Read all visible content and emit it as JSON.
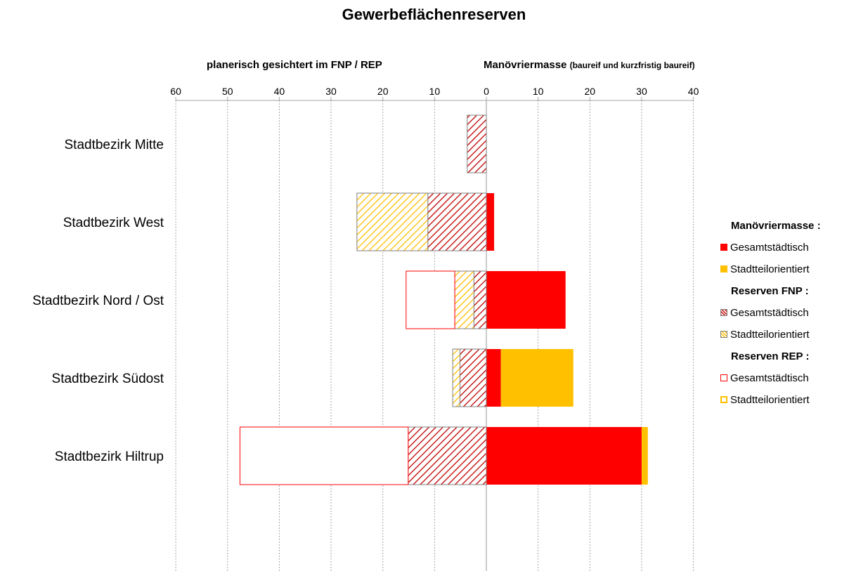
{
  "chart_data": {
    "type": "bar",
    "orientation": "horizontal",
    "title": "Gewerbeflächenreserven",
    "left_subtitle": "planerisch gesichtert im FNP / REP",
    "right_subtitle": "Manövriermasse",
    "right_subtitle_note": "(baureif und kurzfristig baureif)",
    "xlim": [
      -60,
      40
    ],
    "x_ticks": [
      -60,
      -50,
      -40,
      -30,
      -20,
      -10,
      0,
      10,
      20,
      30,
      40
    ],
    "x_tick_labels": [
      "60",
      "50",
      "40",
      "30",
      "20",
      "10",
      "0",
      "10",
      "20",
      "30",
      "40"
    ],
    "grid": true,
    "categories": [
      "Stadtbezirk Mitte",
      "Stadtbezirk West",
      "Stadtbezirk Nord / Ost",
      "Stadtbezirk Südost",
      "Stadtbezirk Hiltrup"
    ],
    "series": [
      {
        "key": "m_gesamt",
        "side": "right",
        "values": [
          0,
          1.5,
          15.3,
          2.8,
          30
        ]
      },
      {
        "key": "m_stadtteil",
        "side": "right",
        "values": [
          0,
          0,
          0,
          14,
          1.2
        ]
      },
      {
        "key": "fnp_gesamt",
        "side": "left",
        "values": [
          3.7,
          11.3,
          2.4,
          5.1,
          15.1
        ]
      },
      {
        "key": "fnp_stadtteil",
        "side": "left",
        "values": [
          0,
          13.7,
          3.7,
          1.4,
          0
        ]
      },
      {
        "key": "rep_gesamt",
        "side": "left",
        "values": [
          0,
          0,
          9.4,
          0,
          32.5
        ]
      },
      {
        "key": "rep_stadtteil",
        "side": "left",
        "values": [
          0,
          0,
          0,
          0,
          0
        ]
      }
    ]
  },
  "legend": {
    "groups": [
      {
        "header": "Manövriermasse :",
        "items": [
          {
            "label": "Gesamtstädtisch",
            "style": "solid-red"
          },
          {
            "label": "Stadtteilorientiert",
            "style": "solid-orange"
          }
        ]
      },
      {
        "header": "Reserven FNP :",
        "items": [
          {
            "label": "Gesamtstädtisch",
            "style": "hatch-red"
          },
          {
            "label": "Stadtteilorientiert",
            "style": "hatch-yellow"
          }
        ]
      },
      {
        "header": "Reserven REP :",
        "items": [
          {
            "label": "Gesamtstädtisch",
            "style": "outline-red"
          },
          {
            "label": "Stadtteilorientiert",
            "style": "outline-orange"
          }
        ]
      }
    ]
  },
  "colors": {
    "red": "#ff0000",
    "orange": "#ffc000",
    "yellow_hatch": "#ffc000",
    "hatch_dark": "#c00000",
    "outline_dark": "#7f7f7f",
    "grid": "#a6a6a6"
  }
}
